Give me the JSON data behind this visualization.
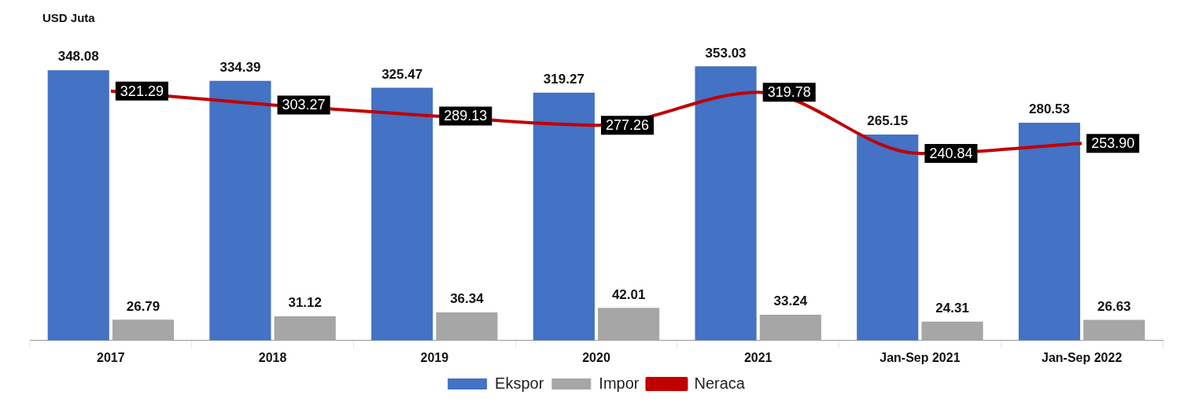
{
  "chart_data": {
    "type": "bar",
    "ylabel": "USD Juta",
    "categories": [
      "2017",
      "2018",
      "2019",
      "2020",
      "2021",
      "Jan-Sep 2021",
      "Jan-Sep 2022"
    ],
    "series": [
      {
        "name": "Ekspor",
        "color": "#4472c4",
        "values": [
          348.08,
          334.39,
          325.47,
          319.27,
          353.03,
          265.15,
          280.53
        ],
        "value_labels": [
          "348.08",
          "334.39",
          "325.47",
          "319.27",
          "353.03",
          "265.15",
          "280.53"
        ]
      },
      {
        "name": "Impor",
        "color": "#a6a6a6",
        "values": [
          26.79,
          31.12,
          36.34,
          42.01,
          33.24,
          24.31,
          26.63
        ],
        "value_labels": [
          "26.79",
          "31.12",
          "36.34",
          "42.01",
          "33.24",
          "24.31",
          "26.63"
        ]
      },
      {
        "name": "Neraca",
        "type": "line",
        "color": "#c00000",
        "values": [
          321.29,
          303.27,
          289.13,
          277.26,
          319.78,
          240.84,
          253.9
        ],
        "value_labels": [
          "321.29",
          "303.27",
          "289.13",
          "277.26",
          "319.78",
          "240.84",
          "253.90"
        ]
      }
    ],
    "legend": "bottom",
    "grid": false,
    "tick_labels": "x",
    "marker": "none"
  }
}
